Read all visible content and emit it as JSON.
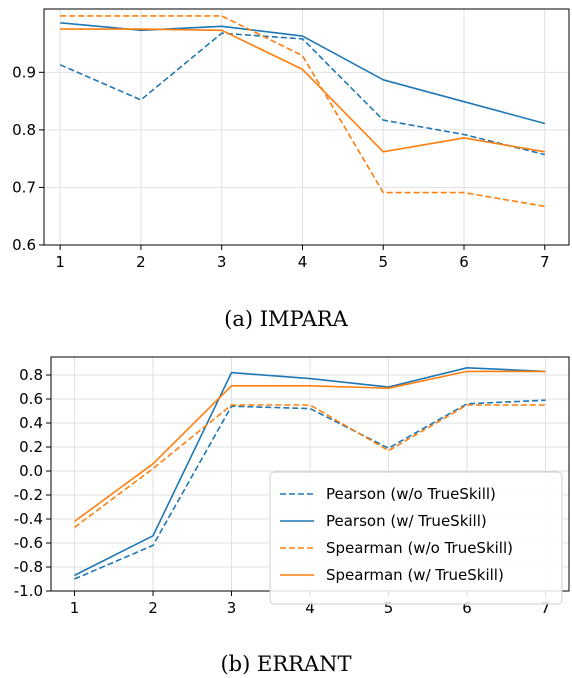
{
  "colors": {
    "pearson": "#1f77b4",
    "spearman": "#ff7f0e",
    "grid": "#e0e0e0"
  },
  "captions": [
    "(a) IMPARA",
    "(b) ERRANT"
  ],
  "legend": {
    "placement": "lower-right",
    "entries": [
      "Pearson (w/o TrueSkill)",
      "Pearson (w/ TrueSkill)",
      "Spearman (w/o TrueSkill)",
      "Spearman (w/ TrueSkill)"
    ]
  },
  "chart_data": [
    {
      "type": "line",
      "title": "",
      "xlabel": "",
      "ylabel": "",
      "x": [
        1,
        2,
        3,
        4,
        5,
        6,
        7
      ],
      "xlim": [
        0.8,
        7.3
      ],
      "ylim": [
        0.6,
        1.01
      ],
      "yticks": [
        "0.6",
        "0.7",
        "0.8",
        "0.9"
      ],
      "ytick_values": [
        0.6,
        0.7,
        0.8,
        0.9
      ],
      "grid": true,
      "series": [
        {
          "name": "Pearson (w/o TrueSkill)",
          "style": "dashed",
          "color": "#1f77b4",
          "values": [
            0.913,
            0.852,
            0.968,
            0.958,
            0.817,
            0.792,
            0.757
          ]
        },
        {
          "name": "Pearson (w/ TrueSkill)",
          "style": "solid",
          "color": "#1f77b4",
          "values": [
            0.986,
            0.973,
            0.98,
            0.963,
            0.887,
            0.849,
            0.811
          ]
        },
        {
          "name": "Spearman (w/o TrueSkill)",
          "style": "dashed",
          "color": "#ff7f0e",
          "values": [
            0.998,
            0.998,
            0.998,
            0.929,
            0.691,
            0.691,
            0.667
          ]
        },
        {
          "name": "Spearman (w/ TrueSkill)",
          "style": "solid",
          "color": "#ff7f0e",
          "values": [
            0.975,
            0.975,
            0.973,
            0.905,
            0.762,
            0.786,
            0.762
          ]
        }
      ]
    },
    {
      "type": "line",
      "title": "",
      "xlabel": "",
      "ylabel": "",
      "x": [
        1,
        2,
        3,
        4,
        5,
        6,
        7
      ],
      "xlim": [
        0.7,
        7.3
      ],
      "ylim": [
        -1.0,
        0.95
      ],
      "yticks": [
        "0.8",
        "0.6",
        "0.4",
        "0.2",
        "0.0",
        "-0.2",
        "-0.4",
        "-0.6",
        "-0.8",
        "-1.0"
      ],
      "ytick_values": [
        0.8,
        0.6,
        0.4,
        0.2,
        0.0,
        -0.2,
        -0.4,
        -0.6,
        -0.8,
        -1.0
      ],
      "grid": true,
      "series": [
        {
          "name": "Pearson (w/o TrueSkill)",
          "style": "dashed",
          "color": "#1f77b4",
          "values": [
            -0.9,
            -0.62,
            0.54,
            0.52,
            0.19,
            0.56,
            0.59
          ]
        },
        {
          "name": "Pearson (w/ TrueSkill)",
          "style": "solid",
          "color": "#1f77b4",
          "values": [
            -0.87,
            -0.54,
            0.82,
            0.77,
            0.7,
            0.86,
            0.83
          ]
        },
        {
          "name": "Spearman (w/o TrueSkill)",
          "style": "dashed",
          "color": "#ff7f0e",
          "values": [
            -0.47,
            0.02,
            0.55,
            0.55,
            0.17,
            0.55,
            0.55
          ]
        },
        {
          "name": "Spearman (w/ TrueSkill)",
          "style": "solid",
          "color": "#ff7f0e",
          "values": [
            -0.42,
            0.06,
            0.71,
            0.71,
            0.69,
            0.83,
            0.83
          ]
        }
      ]
    }
  ]
}
